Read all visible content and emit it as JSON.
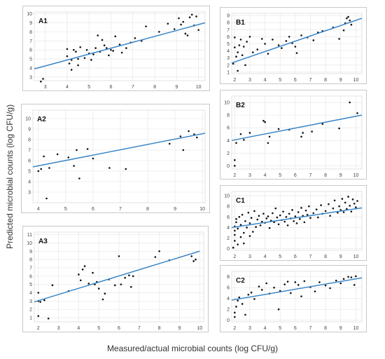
{
  "axes": {
    "ylabel": "Predicted microbial counts (log CFU/g)",
    "xlabel": "Measured/actual microbial counts (log CFU/g)"
  },
  "colors": {
    "fit_line": "#3a87c8",
    "point": "#111111",
    "grid": "#e3e3e3",
    "frame": "#c8c8c8"
  },
  "chart_data": [
    {
      "type": "scatter",
      "label": "A1",
      "xticks": [
        3,
        4,
        5,
        6,
        7,
        8,
        9,
        10
      ],
      "yticks": [
        3,
        4,
        5,
        6,
        7,
        8,
        9,
        10
      ],
      "xlim": [
        2.5,
        10.3
      ],
      "ylim": [
        2.6,
        10.2
      ],
      "fit": [
        [
          2.5,
          3.9
        ],
        [
          10.3,
          9.0
        ]
      ],
      "points": [
        [
          2.8,
          2.5
        ],
        [
          2.9,
          2.8
        ],
        [
          4.0,
          6.1
        ],
        [
          4.0,
          5.3
        ],
        [
          4.1,
          4.5
        ],
        [
          4.2,
          3.8
        ],
        [
          4.2,
          4.9
        ],
        [
          4.3,
          6.0
        ],
        [
          4.4,
          5.8
        ],
        [
          4.5,
          4.3
        ],
        [
          4.5,
          5.0
        ],
        [
          4.6,
          6.3
        ],
        [
          4.8,
          5.1
        ],
        [
          4.9,
          6.0
        ],
        [
          5.0,
          5.6
        ],
        [
          5.1,
          4.9
        ],
        [
          5.2,
          5.5
        ],
        [
          5.3,
          6.2
        ],
        [
          5.4,
          7.6
        ],
        [
          5.5,
          5.8
        ],
        [
          5.6,
          7.1
        ],
        [
          5.7,
          6.5
        ],
        [
          5.8,
          6.2
        ],
        [
          5.9,
          5.4
        ],
        [
          6.0,
          6.0
        ],
        [
          6.1,
          5.9
        ],
        [
          6.2,
          7.5
        ],
        [
          6.4,
          6.6
        ],
        [
          6.5,
          5.7
        ],
        [
          6.7,
          6.2
        ],
        [
          6.9,
          6.8
        ],
        [
          7.1,
          7.3
        ],
        [
          7.4,
          7.0
        ],
        [
          7.6,
          8.6
        ],
        [
          8.2,
          8.0
        ],
        [
          8.6,
          8.9
        ],
        [
          8.9,
          8.3
        ],
        [
          9.1,
          9.5
        ],
        [
          9.2,
          8.8
        ],
        [
          9.3,
          9.1
        ],
        [
          9.4,
          7.8
        ],
        [
          9.5,
          7.6
        ],
        [
          9.6,
          9.6
        ],
        [
          9.7,
          9.9
        ],
        [
          9.8,
          8.7
        ],
        [
          9.9,
          9.7
        ],
        [
          10.0,
          8.2
        ]
      ]
    },
    {
      "type": "scatter",
      "label": "A2",
      "xticks": [
        4,
        5,
        6,
        7,
        8,
        9,
        10
      ],
      "yticks": [
        3,
        4,
        5,
        6,
        7,
        8,
        9,
        10
      ],
      "xlim": [
        3.8,
        10.1
      ],
      "ylim": [
        2.0,
        10.8
      ],
      "fit": [
        [
          3.8,
          5.4
        ],
        [
          10.1,
          8.6
        ]
      ],
      "points": [
        [
          4.0,
          5.0
        ],
        [
          4.1,
          5.2
        ],
        [
          4.2,
          6.4
        ],
        [
          4.3,
          2.4
        ],
        [
          4.4,
          5.3
        ],
        [
          4.7,
          6.6
        ],
        [
          5.1,
          6.3
        ],
        [
          5.3,
          5.5
        ],
        [
          5.4,
          7.0
        ],
        [
          5.5,
          4.3
        ],
        [
          5.8,
          7.1
        ],
        [
          6.0,
          6.2
        ],
        [
          6.6,
          5.3
        ],
        [
          7.2,
          5.2
        ],
        [
          8.8,
          7.6
        ],
        [
          9.2,
          8.3
        ],
        [
          9.3,
          7.0
        ],
        [
          9.5,
          8.8
        ],
        [
          9.7,
          8.5
        ],
        [
          9.8,
          8.2
        ]
      ]
    },
    {
      "type": "scatter",
      "label": "A3",
      "xticks": [
        2,
        3,
        4,
        5,
        6,
        7,
        8,
        9,
        10
      ],
      "yticks": [
        1,
        2,
        3,
        4,
        5,
        6,
        7,
        8,
        9,
        10,
        11
      ],
      "xlim": [
        1.8,
        10.2
      ],
      "ylim": [
        0.5,
        11.3
      ],
      "fit": [
        [
          1.8,
          2.9
        ],
        [
          10.0,
          9.0
        ]
      ],
      "points": [
        [
          2.0,
          1.2
        ],
        [
          2.0,
          3.0
        ],
        [
          2.0,
          4.0
        ],
        [
          2.1,
          2.9
        ],
        [
          2.3,
          3.1
        ],
        [
          2.5,
          0.9
        ],
        [
          2.7,
          4.9
        ],
        [
          3.5,
          4.2
        ],
        [
          4.0,
          6.2
        ],
        [
          4.1,
          5.5
        ],
        [
          4.2,
          6.8
        ],
        [
          4.3,
          7.2
        ],
        [
          4.5,
          5.1
        ],
        [
          4.7,
          6.4
        ],
        [
          4.8,
          5.0
        ],
        [
          4.9,
          5.3
        ],
        [
          5.0,
          4.5
        ],
        [
          5.2,
          3.2
        ],
        [
          5.3,
          3.9
        ],
        [
          5.5,
          5.6
        ],
        [
          5.8,
          4.9
        ],
        [
          6.0,
          8.4
        ],
        [
          6.1,
          5.0
        ],
        [
          6.3,
          5.8
        ],
        [
          6.5,
          6.1
        ],
        [
          6.6,
          4.7
        ],
        [
          6.7,
          6.0
        ],
        [
          7.8,
          8.3
        ],
        [
          8.0,
          9.0
        ],
        [
          8.5,
          7.9
        ],
        [
          9.6,
          8.4
        ],
        [
          9.7,
          7.8
        ],
        [
          9.8,
          8.0
        ]
      ]
    },
    {
      "type": "scatter",
      "label": "B1",
      "xticks": [
        2,
        3,
        4,
        5,
        6,
        7,
        8,
        9,
        10
      ],
      "yticks": [
        1,
        2,
        3,
        4,
        5,
        6,
        7,
        8,
        9
      ],
      "xlim": [
        1.8,
        10.4
      ],
      "ylim": [
        0.8,
        9.3
      ],
      "fit": [
        [
          1.8,
          2.3
        ],
        [
          10.4,
          8.6
        ]
      ],
      "points": [
        [
          1.9,
          2.2
        ],
        [
          2.0,
          4.5
        ],
        [
          2.0,
          5.9
        ],
        [
          2.1,
          3.2
        ],
        [
          2.2,
          1.2
        ],
        [
          2.2,
          3.8
        ],
        [
          2.3,
          4.8
        ],
        [
          2.4,
          5.6
        ],
        [
          2.5,
          3.4
        ],
        [
          2.6,
          4.6
        ],
        [
          2.7,
          2.0
        ],
        [
          2.8,
          5.3
        ],
        [
          3.0,
          6.0
        ],
        [
          3.2,
          3.8
        ],
        [
          3.5,
          4.2
        ],
        [
          3.8,
          5.7
        ],
        [
          4.0,
          5.0
        ],
        [
          4.2,
          3.6
        ],
        [
          4.5,
          5.6
        ],
        [
          4.9,
          4.8
        ],
        [
          5.1,
          4.4
        ],
        [
          5.4,
          5.4
        ],
        [
          5.6,
          6.0
        ],
        [
          5.8,
          5.1
        ],
        [
          6.0,
          4.6
        ],
        [
          6.1,
          3.7
        ],
        [
          6.4,
          6.2
        ],
        [
          6.8,
          5.9
        ],
        [
          7.2,
          5.5
        ],
        [
          7.5,
          6.6
        ],
        [
          7.8,
          6.8
        ],
        [
          8.5,
          7.3
        ],
        [
          8.9,
          5.7
        ],
        [
          9.2,
          6.9
        ],
        [
          9.3,
          7.9
        ],
        [
          9.4,
          8.6
        ],
        [
          9.5,
          8.8
        ],
        [
          9.6,
          8.3
        ],
        [
          9.7,
          7.7
        ]
      ]
    },
    {
      "type": "scatter",
      "label": "B2",
      "xticks": [
        2,
        3,
        4,
        5,
        6,
        7,
        8,
        9,
        10
      ],
      "yticks": [
        0,
        2,
        4,
        6,
        8,
        10
      ],
      "xlim": [
        1.8,
        10.4
      ],
      "ylim": [
        -0.5,
        11.0
      ],
      "fit": [
        [
          1.8,
          4.0
        ],
        [
          10.4,
          8.0
        ]
      ],
      "points": [
        [
          2.0,
          0.0
        ],
        [
          2.0,
          0.9
        ],
        [
          2.1,
          3.6
        ],
        [
          2.4,
          5.0
        ],
        [
          2.6,
          4.1
        ],
        [
          3.0,
          5.2
        ],
        [
          3.9,
          7.1
        ],
        [
          4.0,
          6.9
        ],
        [
          4.2,
          3.6
        ],
        [
          4.3,
          4.6
        ],
        [
          4.9,
          5.8
        ],
        [
          5.6,
          5.7
        ],
        [
          6.4,
          4.6
        ],
        [
          6.5,
          5.2
        ],
        [
          7.1,
          5.4
        ],
        [
          7.8,
          6.6
        ],
        [
          8.9,
          5.9
        ],
        [
          9.6,
          10.0
        ],
        [
          10.1,
          8.3
        ]
      ]
    },
    {
      "type": "scatter",
      "label": "C1",
      "xticks": [
        2,
        3,
        4,
        5,
        6,
        7,
        8,
        9,
        10
      ],
      "yticks": [
        0,
        2,
        4,
        6,
        8,
        10
      ],
      "xlim": [
        1.8,
        10.4
      ],
      "ylim": [
        -0.3,
        10.8
      ],
      "fit": [
        [
          1.8,
          4.0
        ],
        [
          10.4,
          7.7
        ]
      ],
      "points": [
        [
          1.9,
          0.2
        ],
        [
          2.0,
          1.5
        ],
        [
          2.0,
          2.6
        ],
        [
          2.0,
          3.4
        ],
        [
          2.0,
          4.2
        ],
        [
          2.1,
          5.0
        ],
        [
          2.1,
          5.6
        ],
        [
          2.2,
          0.8
        ],
        [
          2.2,
          3.8
        ],
        [
          2.3,
          6.0
        ],
        [
          2.4,
          2.2
        ],
        [
          2.4,
          4.5
        ],
        [
          2.5,
          6.4
        ],
        [
          2.6,
          1.0
        ],
        [
          2.6,
          3.0
        ],
        [
          2.7,
          5.2
        ],
        [
          2.8,
          4.0
        ],
        [
          2.9,
          6.8
        ],
        [
          3.0,
          2.4
        ],
        [
          3.0,
          4.8
        ],
        [
          3.1,
          5.8
        ],
        [
          3.2,
          3.2
        ],
        [
          3.3,
          7.1
        ],
        [
          3.4,
          4.1
        ],
        [
          3.5,
          5.5
        ],
        [
          3.6,
          6.2
        ],
        [
          3.7,
          4.4
        ],
        [
          3.8,
          5.1
        ],
        [
          3.9,
          6.6
        ],
        [
          4.0,
          4.9
        ],
        [
          4.1,
          5.7
        ],
        [
          4.2,
          6.1
        ],
        [
          4.3,
          3.9
        ],
        [
          4.4,
          5.3
        ],
        [
          4.5,
          6.7
        ],
        [
          4.6,
          5.0
        ],
        [
          4.7,
          7.6
        ],
        [
          4.8,
          5.9
        ],
        [
          4.9,
          4.6
        ],
        [
          5.0,
          6.3
        ],
        [
          5.1,
          5.4
        ],
        [
          5.2,
          7.0
        ],
        [
          5.3,
          5.1
        ],
        [
          5.4,
          6.0
        ],
        [
          5.5,
          4.4
        ],
        [
          5.6,
          6.6
        ],
        [
          5.7,
          5.7
        ],
        [
          5.8,
          7.3
        ],
        [
          5.9,
          5.2
        ],
        [
          6.0,
          6.1
        ],
        [
          6.1,
          4.8
        ],
        [
          6.2,
          6.9
        ],
        [
          6.3,
          5.6
        ],
        [
          6.4,
          7.7
        ],
        [
          6.5,
          6.2
        ],
        [
          6.6,
          5.0
        ],
        [
          6.7,
          7.2
        ],
        [
          6.8,
          6.4
        ],
        [
          6.9,
          8.0
        ],
        [
          7.0,
          5.8
        ],
        [
          7.2,
          6.7
        ],
        [
          7.4,
          7.4
        ],
        [
          7.5,
          5.9
        ],
        [
          7.7,
          8.2
        ],
        [
          7.8,
          6.6
        ],
        [
          8.0,
          7.1
        ],
        [
          8.2,
          8.4
        ],
        [
          8.3,
          6.2
        ],
        [
          8.5,
          7.6
        ],
        [
          8.6,
          9.1
        ],
        [
          8.8,
          6.8
        ],
        [
          8.9,
          8.0
        ],
        [
          9.0,
          7.3
        ],
        [
          9.1,
          9.4
        ],
        [
          9.2,
          6.9
        ],
        [
          9.3,
          8.7
        ],
        [
          9.4,
          7.5
        ],
        [
          9.5,
          9.8
        ],
        [
          9.6,
          8.1
        ],
        [
          9.7,
          7.0
        ],
        [
          9.8,
          9.3
        ],
        [
          9.9,
          8.5
        ],
        [
          10.0,
          7.8
        ],
        [
          10.1,
          9.0
        ]
      ]
    },
    {
      "type": "scatter",
      "label": "C2",
      "xticks": [
        2,
        3,
        4,
        5,
        6,
        7,
        8,
        9,
        10
      ],
      "yticks": [
        0,
        2,
        4,
        6,
        8
      ],
      "xlim": [
        1.8,
        10.4
      ],
      "ylim": [
        -0.3,
        9.0
      ],
      "fit": [
        [
          1.8,
          3.7
        ],
        [
          10.4,
          7.8
        ]
      ],
      "points": [
        [
          2.0,
          0.6
        ],
        [
          2.0,
          1.4
        ],
        [
          2.1,
          2.5
        ],
        [
          2.2,
          3.6
        ],
        [
          2.3,
          4.2
        ],
        [
          2.5,
          3.0
        ],
        [
          2.7,
          1.0
        ],
        [
          2.9,
          4.7
        ],
        [
          3.1,
          5.1
        ],
        [
          3.3,
          3.9
        ],
        [
          3.6,
          6.2
        ],
        [
          3.8,
          5.6
        ],
        [
          4.1,
          6.8
        ],
        [
          4.3,
          4.9
        ],
        [
          4.6,
          6.0
        ],
        [
          4.9,
          2.0
        ],
        [
          5.0,
          5.4
        ],
        [
          5.3,
          6.6
        ],
        [
          5.5,
          7.1
        ],
        [
          5.7,
          5.0
        ],
        [
          6.0,
          7.0
        ],
        [
          6.2,
          6.5
        ],
        [
          6.4,
          4.4
        ],
        [
          6.6,
          7.2
        ],
        [
          7.0,
          6.1
        ],
        [
          7.3,
          5.3
        ],
        [
          7.6,
          7.0
        ],
        [
          8.0,
          6.4
        ],
        [
          8.3,
          5.9
        ],
        [
          8.7,
          7.3
        ],
        [
          9.0,
          6.8
        ],
        [
          9.2,
          7.6
        ],
        [
          9.5,
          8.0
        ],
        [
          9.7,
          7.9
        ],
        [
          9.9,
          6.5
        ],
        [
          10.0,
          8.1
        ]
      ]
    }
  ]
}
